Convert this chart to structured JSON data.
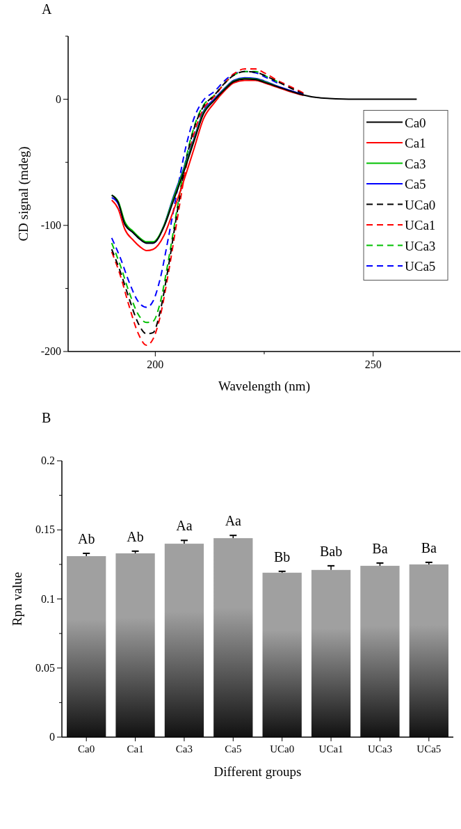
{
  "chart_data": [
    {
      "type": "line",
      "title": "A",
      "xlabel": "Wavelength (nm)",
      "ylabel": "CD signal (mdeg)",
      "xlim": [
        180,
        270
      ],
      "xticks": [
        200,
        {
          "value": 225,
          "label": null
        },
        250
      ],
      "ylim": [
        -200,
        50
      ],
      "yticks": [
        -200,
        {
          "value": -150,
          "label": null
        },
        -100,
        {
          "value": -50,
          "label": null
        },
        0,
        {
          "value": 50,
          "label": null
        }
      ],
      "legend": "right",
      "grid": false,
      "series": [
        {
          "name": "Ca0",
          "color": "#000000",
          "line_style": "solid",
          "x": [
            190,
            191.5,
            193,
            195,
            196.5,
            198,
            199.5,
            202,
            204,
            206.5,
            209,
            211,
            213.5,
            216,
            218,
            220.5,
            223,
            225,
            228,
            231,
            234,
            237,
            240,
            243,
            248.5,
            254,
            260
          ],
          "values": [
            -76,
            -82,
            -99,
            -106,
            -111,
            -114,
            -114,
            -101,
            -82,
            -58,
            -32,
            -12,
            -1,
            8,
            14,
            16,
            15.6,
            13.5,
            10,
            6.5,
            3.4,
            1.4,
            0.6,
            0.2,
            0,
            0,
            0
          ]
        },
        {
          "name": "Ca1",
          "color": "#ff0000",
          "line_style": "solid",
          "x": [
            190,
            191.5,
            193,
            195,
            196.5,
            198,
            199.5,
            202,
            204,
            206.5,
            209,
            211,
            213.5,
            216,
            218,
            220.5,
            223,
            225,
            228,
            231,
            234
          ],
          "values": [
            -80,
            -87,
            -103,
            -112,
            -117,
            -120,
            -119,
            -108,
            -90,
            -65,
            -38,
            -16,
            -3,
            7,
            13,
            15,
            15,
            13,
            9.5,
            6,
            3
          ]
        },
        {
          "name": "Ca3",
          "color": "#00c000",
          "line_style": "solid",
          "x": [
            190,
            191.5,
            193,
            195,
            196.5,
            198,
            199.5,
            202,
            204,
            206.5,
            209,
            211,
            213.5,
            216,
            218,
            220.5,
            223,
            225,
            228
          ],
          "values": [
            -76,
            -81,
            -97,
            -105,
            -110,
            -113,
            -113,
            -100,
            -80,
            -56,
            -31,
            -11,
            -1,
            8.5,
            14.5,
            16.5,
            16,
            14,
            10
          ]
        },
        {
          "name": "Ca5",
          "color": "#0000ff",
          "line_style": "solid",
          "x": [
            190,
            191.5,
            193,
            195,
            196.5,
            198,
            199.5,
            202,
            204,
            206.5,
            209,
            211,
            213.5,
            216,
            218,
            220.5,
            223,
            225,
            228,
            231,
            234
          ],
          "values": [
            -78,
            -83,
            -99,
            -106,
            -111,
            -114,
            -114,
            -100,
            -79,
            -55,
            -30,
            -10,
            0,
            9,
            15,
            17,
            16.5,
            14.5,
            10.5,
            7,
            3.6
          ]
        },
        {
          "name": "UCa0",
          "color": "#000000",
          "line_style": "dashed",
          "x": [
            190,
            192,
            194,
            196,
            198,
            199.5,
            201,
            203,
            205,
            207,
            209,
            211,
            213.5,
            216,
            218,
            220.5,
            223,
            225,
            228,
            231,
            234
          ],
          "values": [
            -119,
            -137,
            -158,
            -177,
            -186,
            -185,
            -170,
            -133,
            -90,
            -50,
            -22,
            -6,
            3,
            13,
            19,
            22,
            21.5,
            19,
            14,
            9,
            4
          ]
        },
        {
          "name": "UCa1",
          "color": "#ff0000",
          "line_style": "dashed",
          "x": [
            190,
            192,
            194,
            196,
            198,
            199.5,
            201,
            203,
            205,
            207,
            209,
            211,
            213.5,
            216,
            218,
            220.5,
            223,
            225,
            228,
            231,
            234
          ],
          "values": [
            -121,
            -140,
            -164,
            -185,
            -195,
            -190,
            -174,
            -138,
            -96,
            -55,
            -26,
            -8,
            2,
            13,
            20,
            24,
            24,
            21,
            15,
            10,
            5
          ]
        },
        {
          "name": "UCa3",
          "color": "#00c000",
          "line_style": "dashed",
          "x": [
            190,
            192,
            194,
            196,
            198,
            199.5,
            201,
            203,
            205,
            207,
            209,
            211,
            213.5,
            216,
            218,
            220.5,
            223,
            225,
            228
          ],
          "values": [
            -114,
            -132,
            -153,
            -170,
            -177,
            -176,
            -163,
            -128,
            -87,
            -48,
            -21,
            -5,
            3,
            13,
            19,
            22,
            22,
            19,
            14
          ]
        },
        {
          "name": "UCa5",
          "color": "#0000ff",
          "line_style": "dashed",
          "x": [
            190,
            192,
            194,
            196,
            198,
            199.5,
            201,
            203,
            205,
            207,
            209,
            211,
            213.5,
            216,
            218,
            220.5,
            223,
            225,
            228
          ],
          "values": [
            -110,
            -126,
            -145,
            -160,
            -165,
            -160,
            -144,
            -110,
            -73,
            -38,
            -14,
            -1,
            6,
            15,
            20,
            22,
            21,
            18,
            13
          ]
        }
      ]
    },
    {
      "type": "bar",
      "title": "B",
      "xlabel": "Different groups",
      "ylabel": "Rpn value",
      "categories": [
        "Ca0",
        "Ca1",
        "Ca3",
        "Ca5",
        "UCa0",
        "UCa1",
        "UCa3",
        "UCa5"
      ],
      "ylim": [
        0,
        0.2
      ],
      "yticks": [
        0,
        {
          "value": 0.025,
          "label": null
        },
        0.05,
        {
          "value": 0.075,
          "label": null
        },
        0.1,
        {
          "value": 0.125,
          "label": null
        },
        0.15,
        {
          "value": 0.175,
          "label": null
        },
        0.2
      ],
      "legend": false,
      "grid": false,
      "color": "#a0a0a0",
      "values": [
        0.131,
        0.133,
        0.14,
        0.144,
        0.119,
        0.121,
        0.124,
        0.125
      ],
      "errors": [
        0.002,
        0.0016,
        0.0024,
        0.002,
        0.001,
        0.003,
        0.002,
        0.0015
      ],
      "value_labels": [
        "Ab",
        "Ab",
        "Aa",
        "Aa",
        "Bb",
        "Bab",
        "Ba",
        "Ba"
      ]
    }
  ]
}
